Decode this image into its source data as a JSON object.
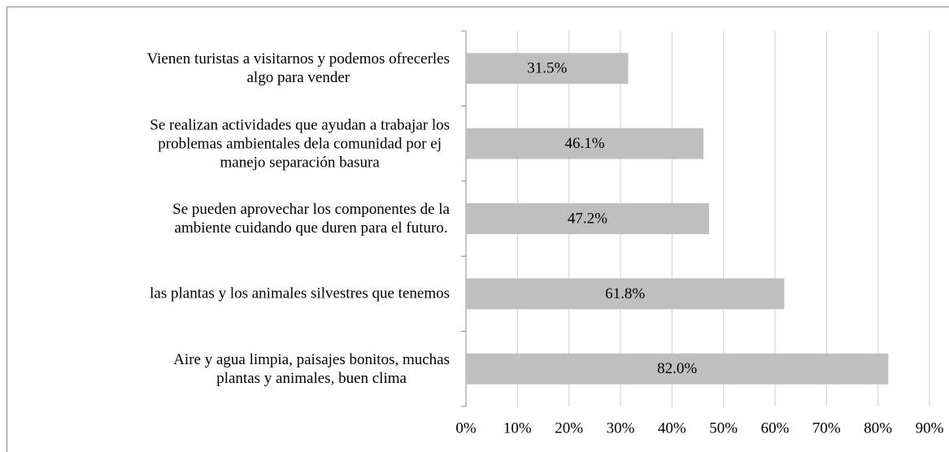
{
  "chart_data": {
    "type": "barh",
    "categories": [
      "Vienen turistas a visitarnos y podemos ofrecerles\nalgo para vender",
      "Se realizan  actividades que ayudan a trabajar los\nproblemas ambientales dela comunidad por ej\nmanejo separación basura",
      "Se pueden aprovechar los componentes de la\nambiente cuidando que duren para el futuro.",
      "las plantas y los animales silvestres que tenemos",
      "Aire y agua limpia, paisajes bonitos, muchas\nplantas y animales, buen clima"
    ],
    "values": [
      31.5,
      46.1,
      47.2,
      61.8,
      82.0
    ],
    "value_labels": [
      "31.5%",
      "46.1%",
      "47.2%",
      "61.8%",
      "82.0%"
    ],
    "color": "#bfbfbf",
    "xlim": [
      0,
      90
    ],
    "xticks": [
      {
        "value": 0,
        "label": "0%"
      },
      {
        "value": 10,
        "label": "10%"
      },
      {
        "value": 20,
        "label": "20%"
      },
      {
        "value": 30,
        "label": "30%"
      },
      {
        "value": 40,
        "label": "40%"
      },
      {
        "value": 50,
        "label": "50%"
      },
      {
        "value": 60,
        "label": "60%"
      },
      {
        "value": 70,
        "label": "70%"
      },
      {
        "value": 80,
        "label": "80%"
      },
      {
        "value": 90,
        "label": "90%"
      }
    ],
    "grid": true
  }
}
